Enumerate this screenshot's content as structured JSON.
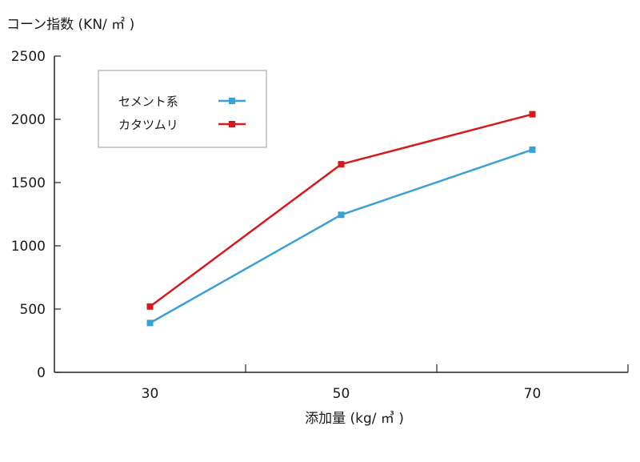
{
  "chart_data": {
    "type": "line",
    "title": "",
    "ylabel": "コーン指数 (KN/ ㎡ )",
    "xlabel": "添加量 (kg/ ㎥ )",
    "x": [
      30,
      50,
      70
    ],
    "x_tick_labels": [
      "30",
      "50",
      "70"
    ],
    "ylim": [
      0,
      2500
    ],
    "y_ticks": [
      0,
      500,
      1000,
      1500,
      2000,
      2500
    ],
    "y_tick_labels": [
      "0",
      "500",
      "1000",
      "1500",
      "2000",
      "2500"
    ],
    "grid": false,
    "legend_position": "top-left",
    "series": [
      {
        "name": "セメント系",
        "color": "#3aa0d8",
        "values": [
          390,
          1245,
          1760
        ]
      },
      {
        "name": "カタツムリ",
        "color": "#d7191c",
        "values": [
          520,
          1645,
          2040
        ]
      }
    ]
  }
}
